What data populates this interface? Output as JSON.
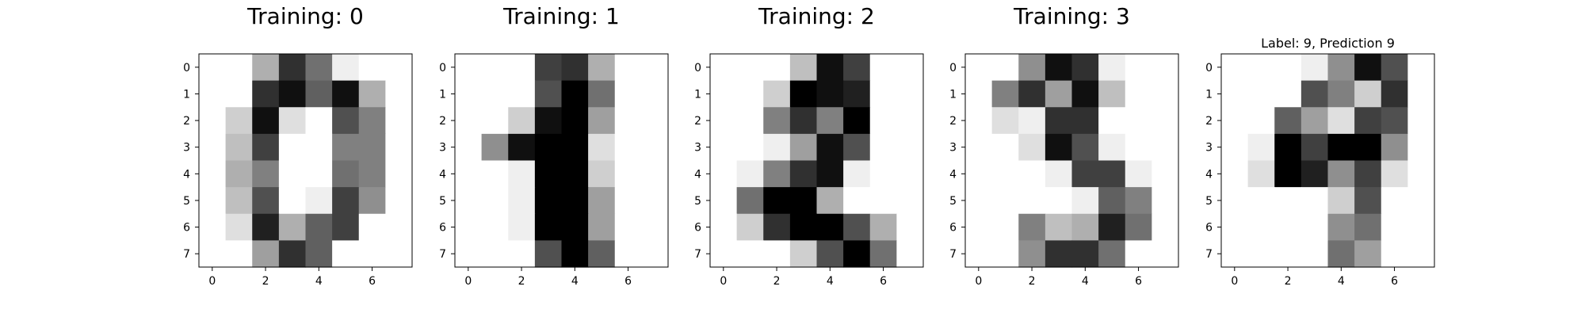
{
  "chart_data": [
    {
      "type": "heatmap",
      "title": "Training: 0",
      "xlabel": "",
      "ylabel": "",
      "colormap": "gray_r",
      "value_range": [
        0,
        16
      ],
      "x_ticks": [
        "0",
        "2",
        "4",
        "6"
      ],
      "y_ticks": [
        "0",
        "1",
        "2",
        "3",
        "4",
        "5",
        "6",
        "7"
      ],
      "values": [
        [
          0,
          0,
          5,
          13,
          9,
          1,
          0,
          0
        ],
        [
          0,
          0,
          13,
          15,
          10,
          15,
          5,
          0
        ],
        [
          0,
          3,
          15,
          2,
          0,
          11,
          8,
          0
        ],
        [
          0,
          4,
          12,
          0,
          0,
          8,
          8,
          0
        ],
        [
          0,
          5,
          8,
          0,
          0,
          9,
          8,
          0
        ],
        [
          0,
          4,
          11,
          0,
          1,
          12,
          7,
          0
        ],
        [
          0,
          2,
          14,
          5,
          10,
          12,
          0,
          0
        ],
        [
          0,
          0,
          6,
          13,
          10,
          0,
          0,
          0
        ]
      ]
    },
    {
      "type": "heatmap",
      "title": "Training: 1",
      "xlabel": "",
      "ylabel": "",
      "colormap": "gray_r",
      "value_range": [
        0,
        16
      ],
      "x_ticks": [
        "0",
        "2",
        "4",
        "6"
      ],
      "y_ticks": [
        "0",
        "1",
        "2",
        "3",
        "4",
        "5",
        "6",
        "7"
      ],
      "values": [
        [
          0,
          0,
          0,
          12,
          13,
          5,
          0,
          0
        ],
        [
          0,
          0,
          0,
          11,
          16,
          9,
          0,
          0
        ],
        [
          0,
          0,
          3,
          15,
          16,
          6,
          0,
          0
        ],
        [
          0,
          7,
          15,
          16,
          16,
          2,
          0,
          0
        ],
        [
          0,
          0,
          1,
          16,
          16,
          3,
          0,
          0
        ],
        [
          0,
          0,
          1,
          16,
          16,
          6,
          0,
          0
        ],
        [
          0,
          0,
          1,
          16,
          16,
          6,
          0,
          0
        ],
        [
          0,
          0,
          0,
          11,
          16,
          10,
          0,
          0
        ]
      ]
    },
    {
      "type": "heatmap",
      "title": "Training: 2",
      "xlabel": "",
      "ylabel": "",
      "colormap": "gray_r",
      "value_range": [
        0,
        16
      ],
      "x_ticks": [
        "0",
        "2",
        "4",
        "6"
      ],
      "y_ticks": [
        "0",
        "1",
        "2",
        "3",
        "4",
        "5",
        "6",
        "7"
      ],
      "values": [
        [
          0,
          0,
          0,
          4,
          15,
          12,
          0,
          0
        ],
        [
          0,
          0,
          3,
          16,
          15,
          14,
          0,
          0
        ],
        [
          0,
          0,
          8,
          13,
          8,
          16,
          0,
          0
        ],
        [
          0,
          0,
          1,
          6,
          15,
          11,
          0,
          0
        ],
        [
          0,
          1,
          8,
          13,
          15,
          1,
          0,
          0
        ],
        [
          0,
          9,
          16,
          16,
          5,
          0,
          0,
          0
        ],
        [
          0,
          3,
          13,
          16,
          16,
          11,
          5,
          0
        ],
        [
          0,
          0,
          0,
          3,
          11,
          16,
          9,
          0
        ]
      ]
    },
    {
      "type": "heatmap",
      "title": "Training: 3",
      "xlabel": "",
      "ylabel": "",
      "colormap": "gray_r",
      "value_range": [
        0,
        16
      ],
      "x_ticks": [
        "0",
        "2",
        "4",
        "6"
      ],
      "y_ticks": [
        "0",
        "1",
        "2",
        "3",
        "4",
        "5",
        "6",
        "7"
      ],
      "values": [
        [
          0,
          0,
          7,
          15,
          13,
          1,
          0,
          0
        ],
        [
          0,
          8,
          13,
          6,
          15,
          4,
          0,
          0
        ],
        [
          0,
          2,
          1,
          13,
          13,
          0,
          0,
          0
        ],
        [
          0,
          0,
          2,
          15,
          11,
          1,
          0,
          0
        ],
        [
          0,
          0,
          0,
          1,
          12,
          12,
          1,
          0
        ],
        [
          0,
          0,
          0,
          0,
          1,
          10,
          8,
          0
        ],
        [
          0,
          0,
          8,
          4,
          5,
          14,
          9,
          0
        ],
        [
          0,
          0,
          7,
          13,
          13,
          9,
          0,
          0
        ]
      ]
    },
    {
      "type": "heatmap",
      "title": "Label: 9, Prediction 9",
      "xlabel": "",
      "ylabel": "",
      "colormap": "gray_r",
      "value_range": [
        0,
        16
      ],
      "x_ticks": [
        "0",
        "2",
        "4",
        "6"
      ],
      "y_ticks": [
        "0",
        "1",
        "2",
        "3",
        "4",
        "5",
        "6",
        "7"
      ],
      "values": [
        [
          0,
          0,
          0,
          1,
          7,
          15,
          11,
          0
        ],
        [
          0,
          0,
          0,
          11,
          8,
          3,
          13,
          0
        ],
        [
          0,
          0,
          10,
          6,
          2,
          12,
          11,
          0
        ],
        [
          0,
          1,
          16,
          12,
          16,
          16,
          7,
          0
        ],
        [
          0,
          2,
          16,
          14,
          7,
          12,
          2,
          0
        ],
        [
          0,
          0,
          0,
          0,
          3,
          11,
          0,
          0
        ],
        [
          0,
          0,
          0,
          0,
          7,
          9,
          0,
          0
        ],
        [
          0,
          0,
          0,
          0,
          9,
          6,
          0,
          0
        ]
      ]
    }
  ]
}
